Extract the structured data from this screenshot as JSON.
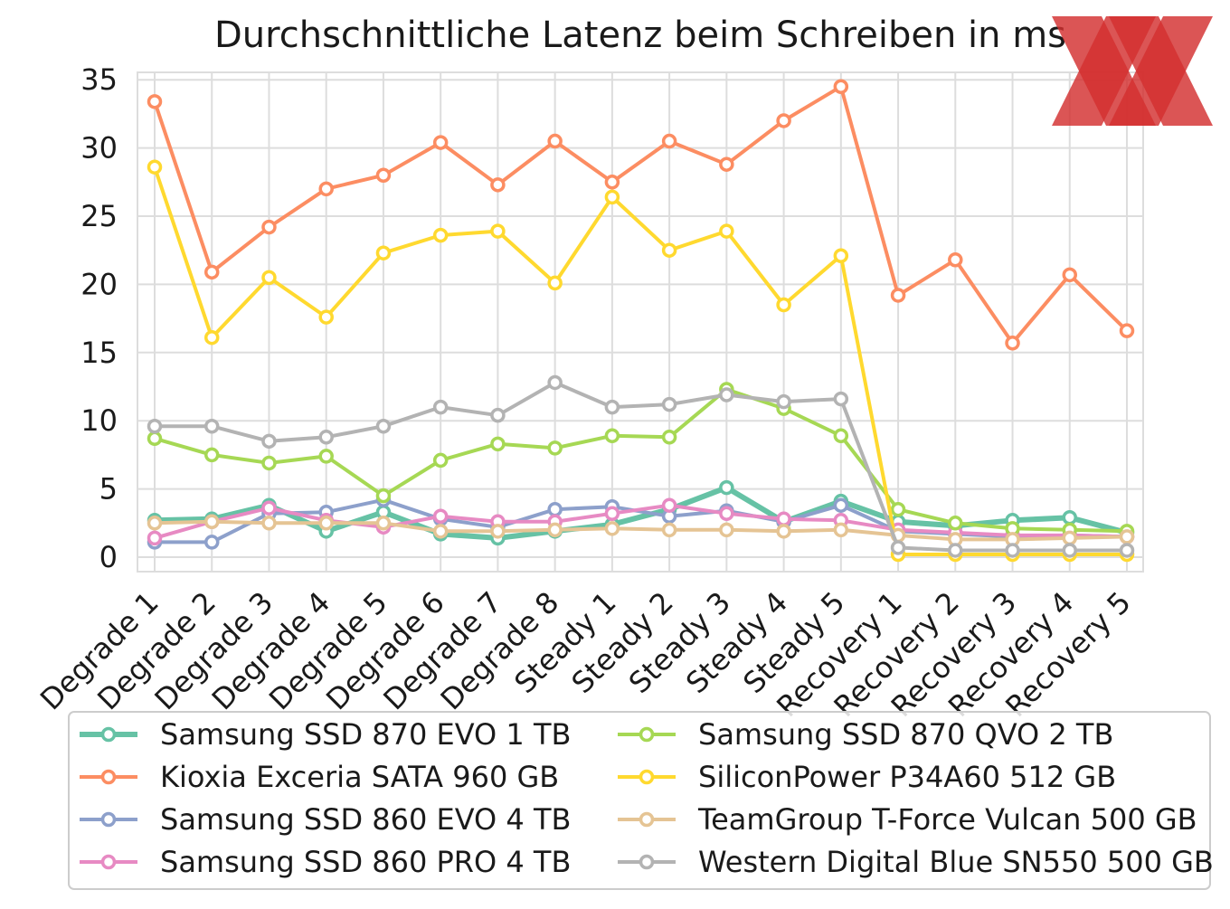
{
  "chart_data": {
    "type": "line",
    "title": "Durchschnittliche Latenz beim Schreiben in ms",
    "xlabel": "",
    "ylabel": "",
    "ylim": [
      0,
      35
    ],
    "yticks": [
      0,
      5,
      10,
      15,
      20,
      25,
      30,
      35
    ],
    "grid": true,
    "legend_position": "bottom",
    "categories": [
      "Degrade 1",
      "Degrade 2",
      "Degrade 3",
      "Degrade 4",
      "Degrade 5",
      "Degrade 6",
      "Degrade 7",
      "Degrade 8",
      "Steady 1",
      "Steady 2",
      "Steady 3",
      "Steady 4",
      "Steady 5",
      "Recovery 1",
      "Recovery 2",
      "Recovery 3",
      "Recovery 4",
      "Recovery 5"
    ],
    "series": [
      {
        "name": "Samsung SSD 870 EVO 1 TB",
        "color": "#66c2a5",
        "width": 6,
        "values": [
          2.7,
          2.8,
          3.8,
          1.9,
          3.3,
          1.7,
          1.4,
          1.9,
          2.4,
          3.5,
          5.1,
          2.6,
          4.1,
          2.6,
          2.3,
          2.7,
          2.9,
          1.8
        ]
      },
      {
        "name": "Kioxia Exceria SATA 960 GB",
        "color": "#fc8d62",
        "width": 4,
        "values": [
          33.4,
          20.9,
          24.2,
          27.0,
          28.0,
          30.4,
          27.3,
          30.5,
          27.5,
          30.5,
          28.8,
          32.0,
          34.5,
          19.2,
          21.8,
          15.7,
          20.7,
          16.6
        ]
      },
      {
        "name": "Samsung SSD 860 EVO 4 TB",
        "color": "#8da0cb",
        "width": 4,
        "values": [
          1.1,
          1.1,
          3.2,
          3.3,
          4.2,
          2.8,
          2.2,
          3.5,
          3.7,
          3.0,
          3.4,
          2.6,
          3.8,
          1.9,
          1.7,
          1.5,
          1.6,
          1.5
        ]
      },
      {
        "name": "Samsung SSD 860 PRO 4 TB",
        "color": "#e78ac3",
        "width": 4,
        "values": [
          1.4,
          2.6,
          3.6,
          2.7,
          2.2,
          3.0,
          2.6,
          2.6,
          3.2,
          3.8,
          3.2,
          2.8,
          2.7,
          2.0,
          1.8,
          1.6,
          1.6,
          1.5
        ]
      },
      {
        "name": "Samsung SSD 870 QVO 2 TB",
        "color": "#a6d854",
        "width": 4,
        "values": [
          8.7,
          7.5,
          6.9,
          7.4,
          4.5,
          7.1,
          8.3,
          8.0,
          8.9,
          8.8,
          12.3,
          10.9,
          8.9,
          3.5,
          2.5,
          2.1,
          2.0,
          1.9
        ]
      },
      {
        "name": "SiliconPower P34A60 512 GB",
        "color": "#ffd92f",
        "width": 4,
        "values": [
          28.6,
          16.1,
          20.5,
          17.6,
          22.3,
          23.6,
          23.9,
          20.1,
          26.4,
          22.5,
          23.9,
          18.5,
          22.1,
          0.2,
          0.2,
          0.2,
          0.2,
          0.2
        ]
      },
      {
        "name": "TeamGroup T-Force Vulcan 500 GB",
        "color": "#e5c494",
        "width": 4,
        "values": [
          2.5,
          2.6,
          2.5,
          2.5,
          2.5,
          1.9,
          1.9,
          2.0,
          2.1,
          2.0,
          2.0,
          1.9,
          2.0,
          1.6,
          1.3,
          1.3,
          1.4,
          1.5
        ]
      },
      {
        "name": "Western Digital Blue SN550 500 GB",
        "color": "#b3b3b3",
        "width": 4,
        "values": [
          9.6,
          9.6,
          8.5,
          8.8,
          9.6,
          11.0,
          10.4,
          12.8,
          11.0,
          11.2,
          11.9,
          11.4,
          11.6,
          0.7,
          0.5,
          0.5,
          0.5,
          0.5
        ]
      }
    ]
  },
  "watermark": {
    "text": "XX",
    "color": "#d32f2f"
  }
}
